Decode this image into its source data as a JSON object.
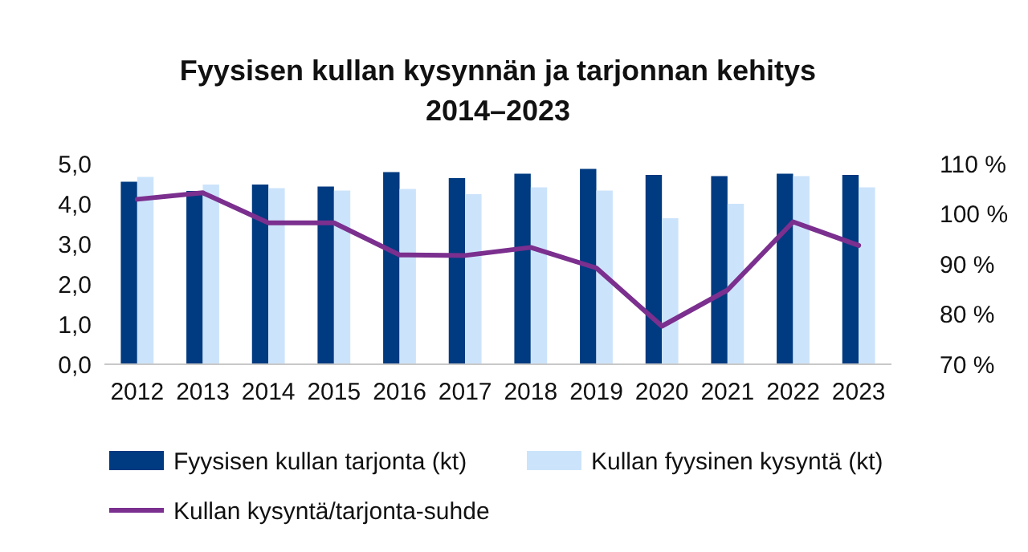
{
  "chart_data": {
    "type": "bar",
    "title": "Fyysisen kullan kysynnän ja tarjonnan kehitys\n2014–2023",
    "categories": [
      "2012",
      "2013",
      "2014",
      "2015",
      "2016",
      "2017",
      "2018",
      "2019",
      "2020",
      "2021",
      "2022",
      "2023"
    ],
    "series": [
      {
        "name": "Fyysisen kullan tarjonta (kt)",
        "color": "#003a80",
        "values": [
          4.55,
          4.32,
          4.48,
          4.43,
          4.79,
          4.64,
          4.75,
          4.87,
          4.72,
          4.69,
          4.75,
          4.72
        ]
      },
      {
        "name": "Kullan fyysinen kysyntä (kt)",
        "color": "#cce4fb",
        "values": [
          4.67,
          4.48,
          4.39,
          4.33,
          4.37,
          4.24,
          4.41,
          4.33,
          3.64,
          4.0,
          4.69,
          4.41
        ]
      },
      {
        "name": "Kullan kysyntä/tarjonta-suhde",
        "type": "line",
        "axis": "y2",
        "color": "#7b2f8e",
        "values": [
          102.9,
          104.2,
          98.2,
          98.2,
          91.8,
          91.7,
          93.3,
          89.2,
          77.6,
          84.8,
          98.4,
          93.7
        ]
      }
    ],
    "ylim": [
      0,
      5
    ],
    "yticks": [
      {
        "value": 0,
        "label": "0,0"
      },
      {
        "value": 1,
        "label": "1,0"
      },
      {
        "value": 2,
        "label": "2,0"
      },
      {
        "value": 3,
        "label": "3,0"
      },
      {
        "value": 4,
        "label": "4,0"
      },
      {
        "value": 5,
        "label": "5,0"
      }
    ],
    "y2lim": [
      70,
      110
    ],
    "y2ticks": [
      {
        "value": 70,
        "label": "70 %"
      },
      {
        "value": 80,
        "label": "80 %"
      },
      {
        "value": 90,
        "label": "90 %"
      },
      {
        "value": 100,
        "label": "100 %"
      },
      {
        "value": 110,
        "label": "110 %"
      }
    ],
    "legend": "bottom",
    "grid": false
  }
}
